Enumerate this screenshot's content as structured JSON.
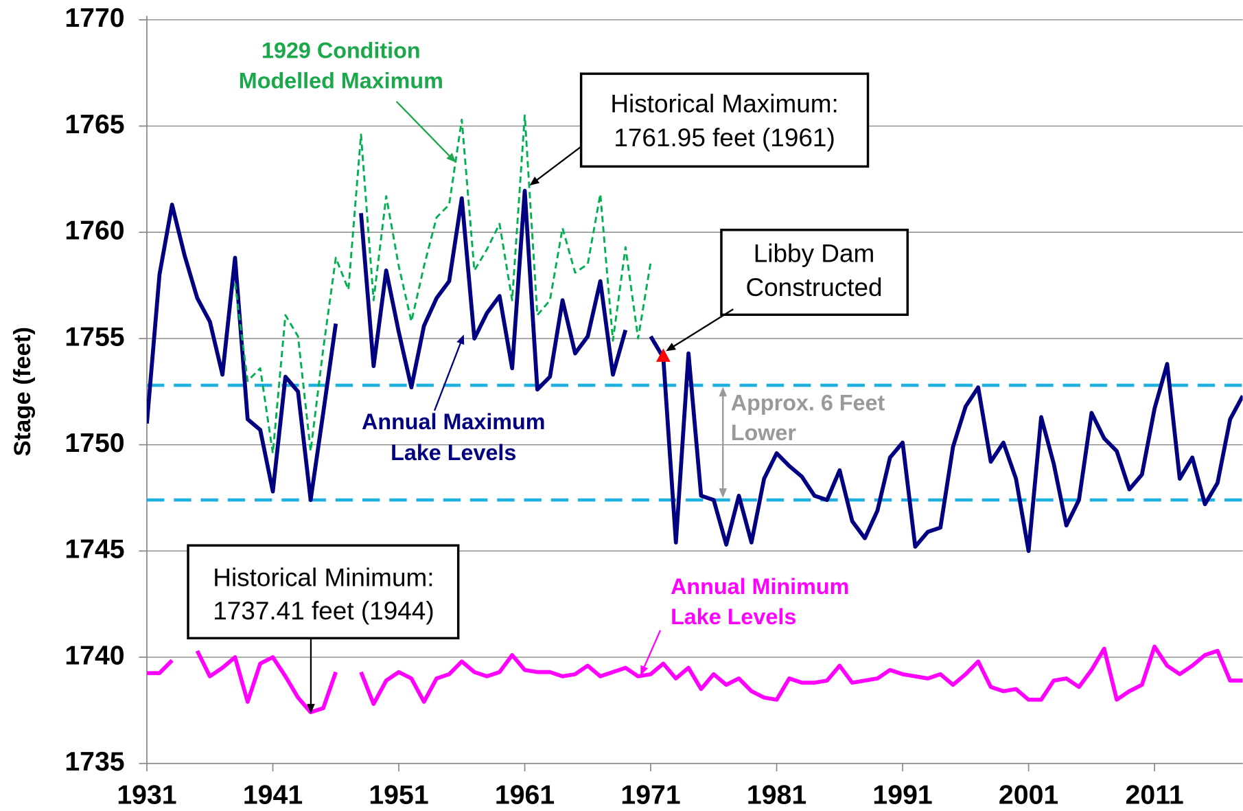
{
  "chart_data": {
    "type": "line",
    "y_label": "Stage (feet)",
    "x": [
      1931,
      1932,
      1933,
      1934,
      1935,
      1936,
      1937,
      1938,
      1939,
      1940,
      1941,
      1942,
      1943,
      1944,
      1945,
      1946,
      1947,
      1948,
      1949,
      1950,
      1951,
      1952,
      1953,
      1954,
      1955,
      1956,
      1957,
      1958,
      1959,
      1960,
      1961,
      1962,
      1963,
      1964,
      1965,
      1966,
      1967,
      1968,
      1969,
      1970,
      1971,
      1972,
      1973,
      1974,
      1975,
      1976,
      1977,
      1978,
      1979,
      1980,
      1981,
      1982,
      1983,
      1984,
      1985,
      1986,
      1987,
      1988,
      1989,
      1990,
      1991,
      1992,
      1993,
      1994,
      1995,
      1996,
      1997,
      1998,
      1999,
      2000,
      2001,
      2002,
      2003,
      2004,
      2005,
      2006,
      2007,
      2008,
      2009,
      2010,
      2011,
      2012,
      2013,
      2014,
      2015,
      2016,
      2017,
      2018
    ],
    "series": [
      {
        "color": "#000080",
        "style": "solid",
        "values": [
          1751.0,
          1758.0,
          1761.3,
          1758.9,
          1756.9,
          1755.8,
          1753.3,
          1758.8,
          1751.2,
          1750.7,
          1747.8,
          1753.2,
          1752.5,
          1747.4,
          1751.5,
          1755.7,
          null,
          1760.9,
          1753.7,
          1758.2,
          1755.3,
          1752.7,
          1755.6,
          1756.9,
          1757.7,
          1761.6,
          1755.0,
          1756.2,
          1757.0,
          1753.6,
          1761.95,
          1752.6,
          1753.2,
          1756.8,
          1754.3,
          1755.1,
          1757.7,
          1753.3,
          1755.4,
          null,
          1755.1,
          1754.1,
          1745.4,
          1754.3,
          1747.6,
          1747.4,
          1745.3,
          1747.6,
          1745.4,
          1748.4,
          1749.6,
          1749.0,
          1748.5,
          1747.6,
          1747.4,
          1748.8,
          1746.4,
          1745.6,
          1746.9,
          1749.4,
          1750.1,
          1745.2,
          1745.9,
          1746.1,
          1749.9,
          1751.8,
          1752.7,
          1749.2,
          1750.1,
          1748.4,
          1745.0,
          1751.3,
          1749.1,
          1746.2,
          1747.4,
          1751.5,
          1750.3,
          1749.7,
          1747.9,
          1748.6,
          1751.7,
          1753.8,
          1748.4,
          1749.4,
          1747.2,
          1748.2,
          1751.2,
          1752.3
        ]
      },
      {
        "color": "#00b050",
        "style": "dashed",
        "values": [
          null,
          null,
          null,
          null,
          null,
          null,
          null,
          1757.6,
          1753.0,
          1753.6,
          1749.6,
          1756.1,
          1755.1,
          1749.7,
          1754.5,
          1758.8,
          1757.3,
          1764.6,
          1756.8,
          1761.7,
          1758.4,
          1755.8,
          1758.4,
          1760.7,
          1761.3,
          1765.3,
          1758.2,
          1759.2,
          1760.4,
          1756.8,
          1765.5,
          1756.1,
          1756.8,
          1760.2,
          1758.1,
          1758.5,
          1761.8,
          1754.9,
          1759.3,
          1755.0,
          1758.6,
          null,
          null,
          null,
          null,
          null,
          null,
          null,
          null,
          null,
          null,
          null,
          null,
          null,
          null,
          null,
          null,
          null,
          null,
          null,
          null,
          null,
          null,
          null,
          null,
          null,
          null,
          null,
          null,
          null,
          null,
          null,
          null,
          null,
          null,
          null,
          null,
          null,
          null,
          null,
          null,
          null,
          null,
          null,
          null,
          null,
          null,
          null
        ]
      },
      {
        "color": "#ff00ff",
        "style": "solid",
        "values": [
          1739.25,
          1739.25,
          1739.85,
          null,
          1740.3,
          1739.1,
          1739.5,
          1740.0,
          1737.9,
          1739.7,
          1740.0,
          1739.1,
          1738.1,
          1737.41,
          1737.6,
          1739.3,
          null,
          1739.3,
          1737.8,
          1738.9,
          1739.3,
          1739.0,
          1737.9,
          1739.0,
          1739.2,
          1739.8,
          1739.3,
          1739.1,
          1739.3,
          1740.1,
          1739.4,
          1739.3,
          1739.3,
          1739.1,
          1739.2,
          1739.6,
          1739.1,
          1739.3,
          1739.5,
          1739.1,
          1739.2,
          1739.7,
          1739.0,
          1739.5,
          1738.5,
          1739.2,
          1738.7,
          1739.0,
          1738.4,
          1738.1,
          1738.0,
          1739.0,
          1738.8,
          1738.8,
          1738.9,
          1739.6,
          1738.8,
          1738.9,
          1739.0,
          1739.4,
          1739.2,
          1739.1,
          1739.0,
          1739.2,
          1738.7,
          1739.2,
          1739.8,
          1738.6,
          1738.4,
          1738.5,
          1738.0,
          1738.0,
          1738.9,
          1739.0,
          1738.6,
          1739.4,
          1740.4,
          1738.0,
          1738.4,
          1738.7,
          1740.5,
          1739.6,
          1739.2,
          1739.6,
          1740.1,
          1740.3,
          1738.9,
          1738.9
        ]
      }
    ],
    "reference_lines": [
      1752.8,
      1747.4
    ],
    "reference_color": "#1eb1e0",
    "marker": {
      "x": 1972,
      "y": 1754.2,
      "color": "#ff0000"
    },
    "annotations": [
      {
        "lines": [
          "1929 Condition",
          "Modelled Maximum"
        ],
        "color": "#1aa84a"
      },
      {
        "lines": [
          "Historical Maximum:",
          "1761.95 feet (1961)"
        ],
        "color": "#000000"
      },
      {
        "lines": [
          "Libby Dam",
          "Constructed"
        ],
        "color": "#000000"
      },
      {
        "lines": [
          "Annual Maximum",
          "Lake Levels"
        ],
        "color": "#000080"
      },
      {
        "lines": [
          "Approx. 6 Feet",
          "Lower"
        ],
        "color": "#999999"
      },
      {
        "lines": [
          "Historical Minimum:",
          "1737.41 feet (1944)"
        ],
        "color": "#000000"
      },
      {
        "lines": [
          "Annual Minimum",
          "Lake Levels"
        ],
        "color": "#ff00ff"
      }
    ],
    "xlim": [
      1931,
      2018
    ],
    "xticks": [
      1931,
      1941,
      1951,
      1961,
      1971,
      1981,
      1991,
      2001,
      2011
    ],
    "ylim": [
      1735,
      1770
    ],
    "yticks": [
      1735,
      1740,
      1745,
      1750,
      1755,
      1760,
      1765,
      1770
    ],
    "grid": true
  }
}
